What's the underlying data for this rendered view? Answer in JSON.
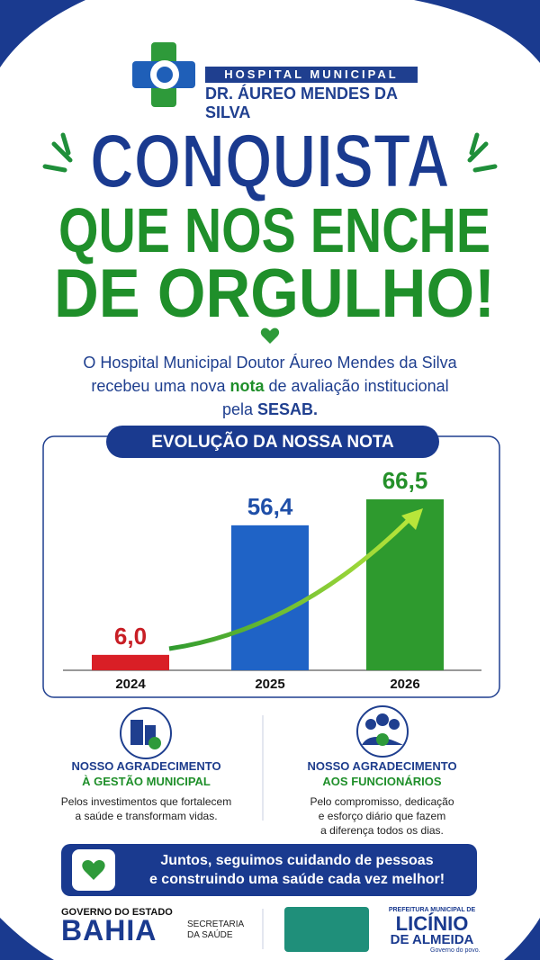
{
  "header": {
    "line1": "HOSPITAL MUNICIPAL",
    "line2": "DR. ÁUREO MENDES DA SILVA"
  },
  "headline": [
    "CONQUISTA",
    "QUE NOS ENCHE",
    "DE ORGULHO!"
  ],
  "intro": {
    "part1": "O Hospital Municipal Doutor Áureo Mendes da Silva",
    "part2": "recebeu uma nova",
    "highlight1": "nota",
    "part3": "de avaliação institucional",
    "part4": "pela",
    "highlight2": "SESAB."
  },
  "chart_data": {
    "type": "bar",
    "title": "EVOLUÇÃO DA NOSSA NOTA",
    "categories": [
      "2024",
      "2025",
      "2026"
    ],
    "values": [
      6.0,
      56.4,
      66.5
    ],
    "value_labels": [
      "6,0",
      "56,4",
      "66,5"
    ],
    "colors": [
      "#d91f26",
      "#1f63c6",
      "#2e9a2e"
    ],
    "label_colors": [
      "#c81e25",
      "#1f4fa8",
      "#25902a"
    ]
  },
  "thanks": [
    {
      "title1": "NOSSO AGRADECIMENTO",
      "title2": "À GESTÃO MUNICIPAL",
      "body1": "Pelos investimentos que fortalecem",
      "body2": "a saúde e transformam vidas."
    },
    {
      "title1": "NOSSO AGRADECIMENTO",
      "title2": "AOS FUNCIONÁRIOS",
      "body1": "Pelo compromisso, dedicação",
      "body2": "e esforço diário que fazem",
      "body3": "a diferença todos os dias."
    }
  ],
  "banner": {
    "line1": "Juntos, seguimos cuidando de pessoas",
    "line2": "e construindo uma saúde cada vez melhor!"
  },
  "footer": {
    "state": "GOVERNO DO ESTADO",
    "bahia": "BAHIA",
    "sec1": "SECRETARIA",
    "sec2": "DA SAÚDE",
    "pref": "PREFEITURA MUNICIPAL DE",
    "city1": "LICÍNIO",
    "city2": "DE ALMEIDA",
    "slogan": "Governo do povo."
  }
}
